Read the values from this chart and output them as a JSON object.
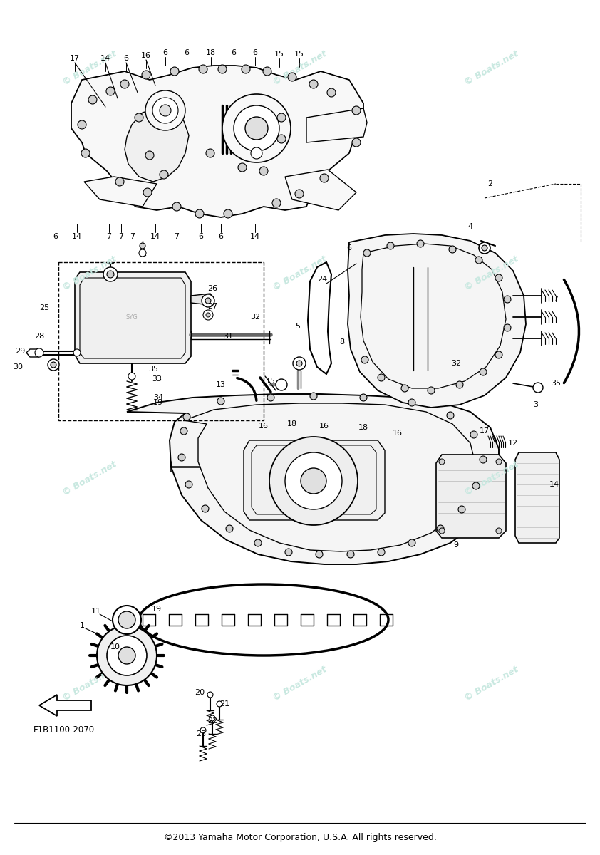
{
  "bg_color": "#ffffff",
  "watermark_color": "#c8e8e0",
  "footer_text": "©2013 Yamaha Motor Corporation, U.S.A. All rights reserved.",
  "part_label": "F1B1100-2070",
  "fwd_label": "FWD",
  "lw_main": 1.2,
  "lw_thin": 0.8,
  "lw_thick": 1.8
}
